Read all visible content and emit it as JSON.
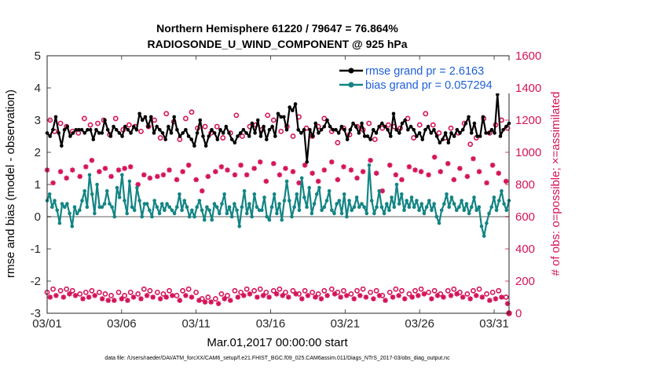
{
  "chart_data": {
    "type": "line",
    "title_line1": "Northern Hemisphere 61220 / 79647 = 76.864%",
    "title_line2": "RADIOSONDE_U_WIND_COMPONENT @ 925 hPa",
    "xlabel": "Mar.01,2017 00:00:00 start",
    "ylabel_left": "rmse and bias (model - observation)",
    "ylabel_right": "# of obs: o=possible; ×=assimilated",
    "footer": "data file: /Users/raeder/DAI/ATM_forcXX/CAM6_setup/f.e21.FHIST_BGC.f09_025.CAM6assim.011/Diags_NTrS_2017-03/obs_diag_output.nc",
    "xlim": [
      1,
      32
    ],
    "ylim_left": [
      -3,
      5
    ],
    "ylim_right": [
      0,
      1600
    ],
    "x_ticks": [
      1,
      6,
      11,
      16,
      21,
      26,
      31
    ],
    "x_tick_labels": [
      "03/01",
      "03/06",
      "03/11",
      "03/16",
      "03/21",
      "03/26",
      "03/31"
    ],
    "y_ticks_left": [
      -3,
      -2,
      -1,
      0,
      1,
      2,
      3,
      4,
      5
    ],
    "y_ticks_left_labels": [
      "-3",
      "-2",
      "-1",
      "0",
      "1",
      "2",
      "3",
      "4",
      "5"
    ],
    "y_ticks_right": [
      0,
      200,
      400,
      600,
      800,
      1000,
      1200,
      1400,
      1600
    ],
    "y_ticks_right_labels": [
      "0",
      "200",
      "400",
      "600",
      "800",
      "1000",
      "1200",
      "1400",
      "1600"
    ],
    "legend": [
      "rmse grand pr = 2.6163",
      "bias grand pr = 0.057294"
    ],
    "colors": {
      "rmse": "#000000",
      "bias": "#138484",
      "obs": "#d4145a",
      "legend_text": "#1f5fd9",
      "zero_line": "#b0b0b0"
    },
    "series": [
      {
        "name": "rmse",
        "values": [
          2.6,
          2.5,
          2.7,
          3.1,
          2.6,
          2.2,
          2.7,
          2.8,
          2.5,
          2.6,
          2.7,
          2.7,
          2.7,
          2.6,
          2.7,
          2.7,
          2.4,
          2.7,
          2.6,
          2.6,
          3.0,
          2.7,
          2.5,
          2.8,
          2.7,
          2.6,
          2.5,
          2.8,
          2.7,
          2.6,
          2.8,
          2.7,
          3.2,
          3.0,
          3.1,
          2.8,
          3.1,
          2.6,
          2.8,
          2.7,
          2.6,
          2.4,
          2.8,
          2.6,
          3.1,
          2.7,
          2.5,
          2.6,
          2.7,
          2.5,
          2.4,
          2.2,
          2.6,
          3.0,
          2.5,
          2.2,
          2.5,
          2.7,
          2.6,
          2.4,
          2.7,
          2.6,
          2.8,
          2.6,
          2.4,
          2.3,
          2.5,
          2.6,
          2.7,
          2.6,
          2.5,
          2.9,
          2.6,
          3.0,
          2.5,
          2.8,
          2.4,
          2.7,
          2.8,
          2.5,
          3.2,
          3.1,
          3.1,
          2.7,
          3.4,
          3.3,
          3.5,
          2.7,
          2.6,
          2.7,
          1.7,
          2.7,
          2.5,
          2.9,
          2.6,
          2.7,
          2.8,
          3.0,
          2.8,
          2.7,
          2.7,
          2.6,
          2.8,
          2.7,
          2.4,
          2.7,
          2.9,
          2.8,
          2.6,
          2.9,
          2.5,
          2.5,
          2.4,
          2.7,
          2.6,
          2.8,
          2.9,
          2.8,
          2.7,
          2.5,
          3.2,
          2.7,
          2.6,
          2.9,
          3.0,
          2.7,
          2.8,
          2.7,
          2.5,
          2.6,
          2.4,
          2.7,
          2.8,
          2.6,
          2.7,
          2.5,
          2.3,
          2.4,
          2.6,
          2.3,
          2.6,
          2.5,
          2.7,
          2.6,
          2.7,
          2.9,
          3.1,
          2.6,
          2.9,
          2.5,
          2.5,
          3.1,
          2.6,
          2.6,
          2.7,
          2.6,
          3.8,
          2.5,
          2.7,
          2.8,
          2.9
        ]
      },
      {
        "name": "bias",
        "values": [
          0.5,
          0.7,
          0.3,
          0.5,
          0.2,
          -0.2,
          0.4,
          0.3,
          0.4,
          0.1,
          -0.3,
          0.3,
          0.1,
          0.2,
          0.5,
          0.8,
          0.3,
          1.3,
          0.7,
          0.1,
          1.0,
          0.3,
          0.3,
          0.4,
          0.8,
          0.4,
          0.3,
          0.0,
          0.9,
          0.6,
          1.3,
          0.5,
          0.1,
          1.1,
          0.3,
          0.2,
          0.9,
          0.5,
          0.0,
          0.4,
          0.4,
          0.2,
          0.0,
          0.5,
          0.3,
          0.1,
          0.4,
          0.2,
          0.4,
          0.3,
          0.2,
          0.1,
          0.3,
          0.7,
          0.2,
          0.5,
          0.3,
          0.0,
          0.2,
          0.0,
          0.3,
          0.5,
          0.2,
          -0.1,
          0.3,
          0.2,
          -0.1,
          0.4,
          0.3,
          0.1,
          0.4,
          0.7,
          0.1,
          0.3,
          0.0,
          0.4,
          0.2,
          -0.3,
          0.3,
          0.8,
          0.1,
          0.4,
          0.0,
          0.7,
          0.3,
          0.2,
          0.2,
          0.6,
          0.0,
          -0.1,
          0.3,
          0.7,
          0.1,
          0.4,
          -0.1,
          0.5,
          1.1,
          0.5,
          0.0,
          0.3,
          0.7,
          0.2,
          1.2,
          0.6,
          0.3,
          0.9,
          0.1,
          0.4,
          0.7,
          0.9,
          0.2,
          0.3,
          0.5,
          0.8,
          0.2,
          0.1,
          0.4,
          0.5,
          0.1,
          0.7,
          0.0,
          0.5,
          0.2,
          0.3,
          0.6,
          0.3,
          0.4,
          0.3,
          0.1,
          1.6,
          0.5,
          0.1,
          0.3,
          0.8,
          0.3,
          0.1,
          0.4,
          0.2,
          0.6,
          0.3,
          1.0,
          0.4,
          0.7,
          0.2,
          0.5,
          0.3,
          0.6,
          0.3,
          0.5,
          0.2,
          0.4,
          0.1,
          0.3,
          0.5,
          0.2,
          0.4,
          0.0,
          -0.2,
          0.2,
          0.4,
          0.7,
          0.3,
          0.6,
          0.4,
          0.2,
          0.3,
          0.5,
          0.2,
          0.4,
          0.1,
          0.3,
          0.6,
          0.2,
          0.3,
          -0.3,
          -0.6,
          -0.2,
          0.1,
          0.3,
          0.6,
          0.2,
          0.5,
          0.8,
          0.4,
          0.2,
          0.5
        ]
      }
    ],
    "obs_possible": {
      "x": [
        1.2,
        1.5,
        1.9,
        2.3,
        2.7,
        3.1,
        3.5,
        3.9,
        4.4,
        4.8,
        5.2,
        5.6,
        6.1,
        6.5,
        6.9,
        7.3,
        7.8,
        8.2,
        8.6,
        9.0,
        9.5,
        9.9,
        10.3,
        10.7,
        11.1,
        11.6,
        12.0,
        12.4,
        12.8,
        13.3,
        13.7,
        14.1,
        14.6,
        15.0,
        15.4,
        15.8,
        16.2,
        16.7,
        17.1,
        17.5,
        17.9,
        18.4,
        18.8,
        19.2,
        19.6,
        20.1,
        20.5,
        20.9,
        21.3,
        21.8,
        22.2,
        22.6,
        23.0,
        23.5,
        23.9,
        24.3,
        24.7,
        25.2,
        25.6,
        26.0,
        26.4,
        26.9,
        27.3,
        27.7,
        28.1,
        28.6,
        29.0,
        29.4,
        29.8,
        30.3,
        30.7,
        31.1,
        31.5,
        31.9
      ],
      "values": [
        1200,
        1130,
        1180,
        1160,
        1130,
        1120,
        1210,
        1170,
        1180,
        1200,
        1110,
        1210,
        1140,
        1170,
        1160,
        1130,
        1160,
        1200,
        1090,
        1240,
        1190,
        1080,
        1210,
        1250,
        1150,
        1160,
        1120,
        1160,
        1090,
        1120,
        1230,
        1100,
        1160,
        1170,
        1140,
        1230,
        1200,
        1130,
        1160,
        1100,
        1220,
        1150,
        1100,
        1160,
        1210,
        1130,
        1060,
        1150,
        1110,
        1160,
        1140,
        1180,
        1080,
        1150,
        1170,
        1160,
        1150,
        1210,
        1090,
        1170,
        1240,
        1170,
        1120,
        1090,
        1150,
        1120,
        1180,
        1050,
        1090,
        1210,
        1120,
        1170,
        1200,
        1150
      ]
    },
    "obs_assimilated": {
      "x": [
        1.0,
        1.4,
        1.9,
        2.3,
        2.7,
        3.2,
        3.6,
        4.0,
        4.5,
        4.9,
        5.3,
        5.8,
        6.2,
        6.6,
        7.1,
        7.5,
        7.9,
        8.4,
        8.8,
        9.2,
        9.7,
        10.1,
        10.5,
        11.0,
        11.4,
        11.8,
        12.3,
        12.7,
        13.1,
        13.6,
        14.0,
        14.4,
        14.9,
        15.3,
        15.7,
        16.2,
        16.6,
        17.0,
        17.5,
        17.9,
        18.3,
        18.8,
        19.2,
        19.6,
        20.1,
        20.5,
        20.9,
        21.4,
        21.8,
        22.2,
        22.7,
        23.1,
        23.5,
        24.0,
        24.4,
        24.8,
        25.3,
        25.7,
        26.1,
        26.6,
        27.0,
        27.4,
        27.9,
        28.3,
        28.7,
        29.2,
        29.6,
        30.0,
        30.5,
        30.9,
        31.3,
        31.8
      ],
      "values": [
        890,
        810,
        880,
        840,
        890,
        850,
        910,
        950,
        880,
        900,
        850,
        890,
        900,
        910,
        800,
        860,
        840,
        850,
        860,
        890,
        830,
        880,
        920,
        830,
        760,
        850,
        880,
        910,
        890,
        860,
        920,
        860,
        900,
        940,
        820,
        930,
        860,
        900,
        880,
        810,
        920,
        870,
        820,
        890,
        940,
        830,
        910,
        890,
        840,
        880,
        950,
        870,
        760,
        920,
        860,
        830,
        910,
        890,
        880,
        860,
        970,
        880,
        930,
        830,
        900,
        850,
        960,
        880,
        810,
        920,
        870,
        820
      ]
    },
    "obs_possible_low": {
      "x": [
        1.0,
        1.4,
        1.9,
        2.3,
        2.7,
        3.2,
        3.6,
        4.0,
        4.5,
        4.9,
        5.3,
        5.8,
        6.2,
        6.6,
        7.1,
        7.5,
        7.9,
        8.4,
        8.8,
        9.2,
        9.7,
        10.1,
        10.5,
        11.0,
        11.4,
        11.8,
        12.3,
        12.7,
        13.1,
        13.6,
        14.0,
        14.4,
        14.9,
        15.3,
        15.7,
        16.2,
        16.6,
        17.0,
        17.5,
        17.9,
        18.3,
        18.8,
        19.2,
        19.6,
        20.1,
        20.5,
        20.9,
        21.4,
        21.8,
        22.2,
        22.7,
        23.1,
        23.5,
        24.0,
        24.4,
        24.8,
        25.3,
        25.7,
        26.1,
        26.6,
        27.0,
        27.4,
        27.9,
        28.3,
        28.7,
        29.2,
        29.6,
        30.0,
        30.5,
        30.9,
        31.3,
        31.8
      ],
      "values": [
        130,
        150,
        140,
        150,
        140,
        120,
        130,
        140,
        130,
        120,
        110,
        130,
        110,
        130,
        120,
        150,
        140,
        130,
        120,
        140,
        110,
        140,
        150,
        130,
        90,
        100,
        90,
        120,
        110,
        140,
        130,
        150,
        140,
        150,
        130,
        140,
        150,
        130,
        140,
        120,
        140,
        130,
        120,
        140,
        150,
        130,
        140,
        120,
        140,
        150,
        130,
        140,
        110,
        130,
        150,
        140,
        120,
        140,
        150,
        130,
        140,
        120,
        140,
        150,
        130,
        120,
        140,
        150,
        120,
        130,
        140,
        100
      ]
    },
    "obs_assimilated_low": {
      "x": [
        1.2,
        1.6,
        2.1,
        2.5,
        2.9,
        3.4,
        3.8,
        4.2,
        4.7,
        5.1,
        5.5,
        6.0,
        6.4,
        6.8,
        7.3,
        7.7,
        8.1,
        8.6,
        9.0,
        9.4,
        9.9,
        10.3,
        10.7,
        11.2,
        11.6,
        12.0,
        12.5,
        12.9,
        13.3,
        13.8,
        14.2,
        14.6,
        15.1,
        15.5,
        15.9,
        16.4,
        16.8,
        17.2,
        17.7,
        18.1,
        18.5,
        19.0,
        19.4,
        19.8,
        20.3,
        20.7,
        21.1,
        21.6,
        22.0,
        22.4,
        22.9,
        23.3,
        23.7,
        24.2,
        24.6,
        25.0,
        25.5,
        25.9,
        26.3,
        26.8,
        27.2,
        27.6,
        28.1,
        28.5,
        28.9,
        29.4,
        29.8,
        30.2,
        30.7,
        31.1,
        31.5,
        31.9
      ],
      "values": [
        100,
        110,
        100,
        120,
        110,
        90,
        100,
        110,
        90,
        80,
        80,
        90,
        80,
        100,
        90,
        110,
        100,
        90,
        100,
        110,
        80,
        110,
        100,
        80,
        70,
        70,
        60,
        90,
        80,
        100,
        110,
        120,
        100,
        110,
        100,
        120,
        110,
        100,
        120,
        90,
        110,
        100,
        90,
        110,
        120,
        100,
        110,
        90,
        110,
        100,
        90,
        110,
        80,
        100,
        110,
        90,
        100,
        110,
        120,
        90,
        110,
        100,
        110,
        120,
        100,
        90,
        110,
        100,
        80,
        90,
        100,
        60
      ]
    },
    "obs_possible_zero_marker": {
      "x": 32,
      "value": 0
    }
  }
}
